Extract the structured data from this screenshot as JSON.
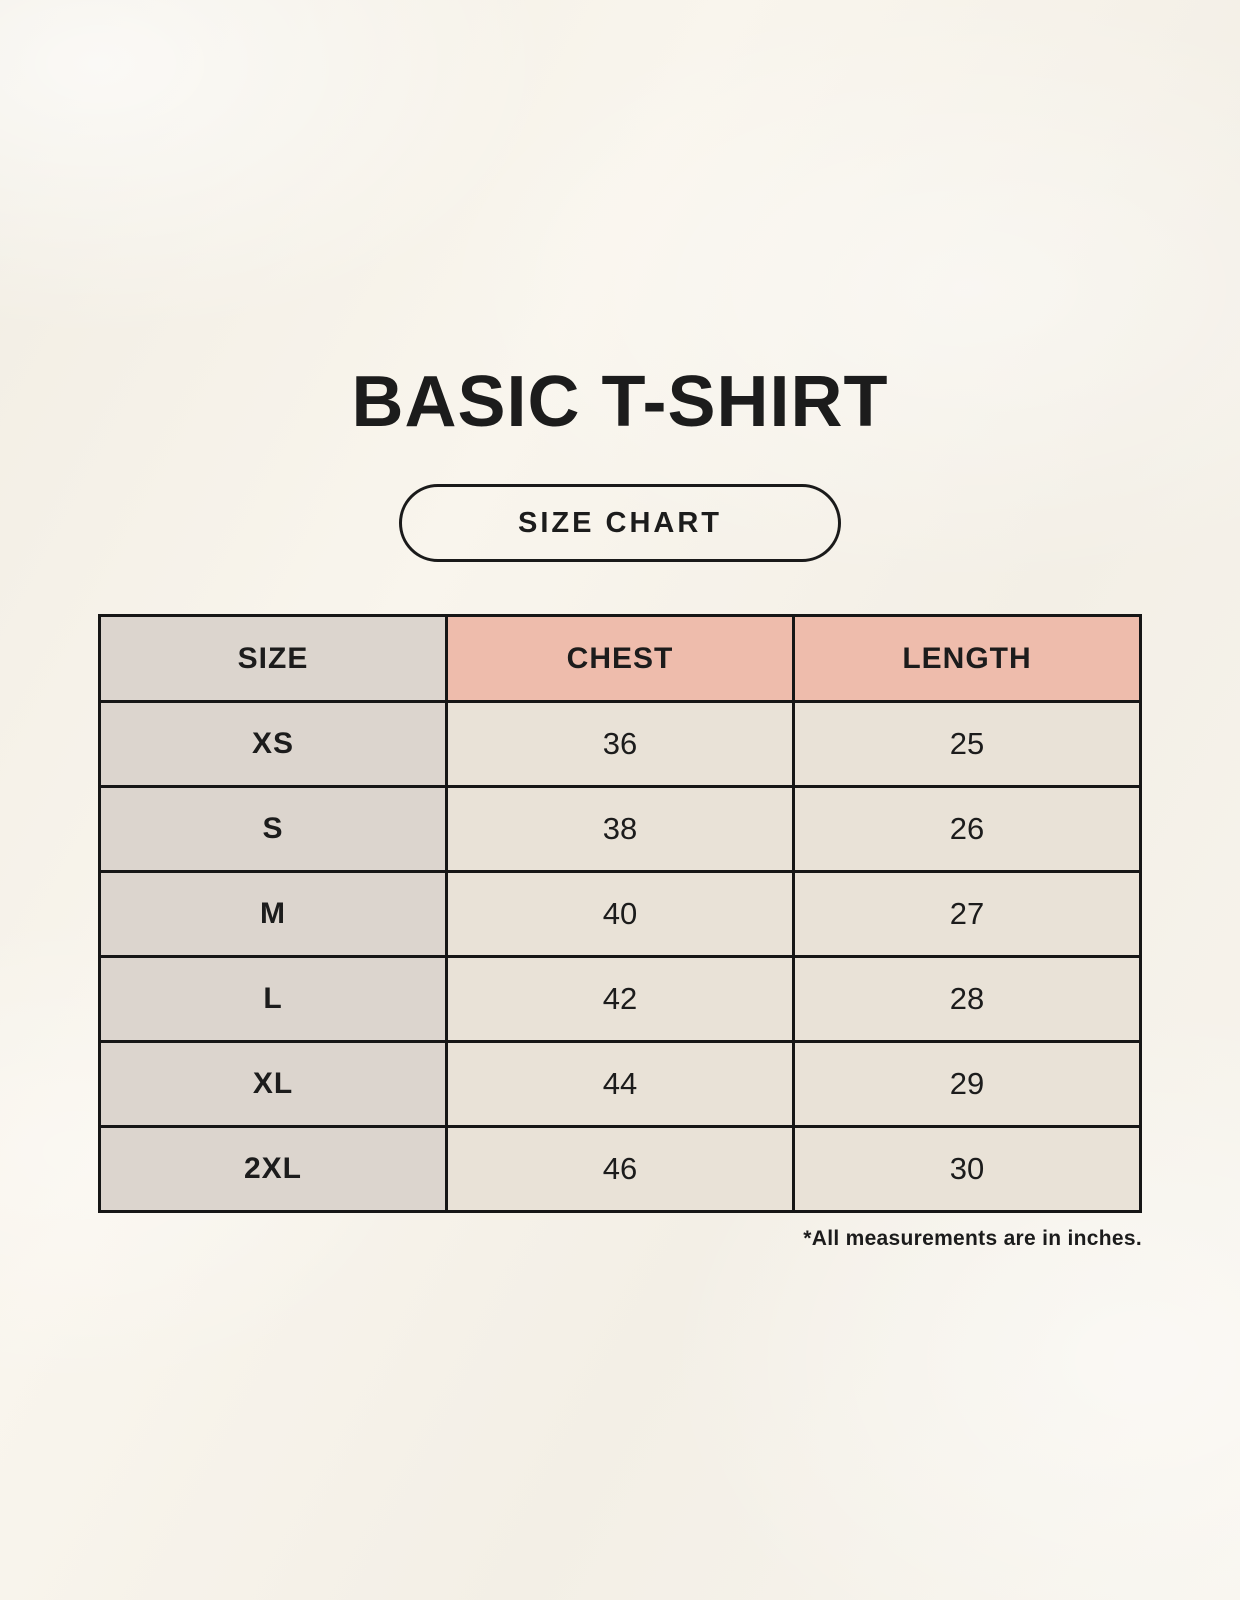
{
  "header": {
    "title": "BASIC T-SHIRT"
  },
  "size_chart_button": {
    "label": "SIZE CHART"
  },
  "footnote": "*All measurements are in inches.",
  "colors": {
    "page_background": "#f6f2e9",
    "accent_header_bg": "#eebcac",
    "size_column_bg": "#dcd5ce",
    "data_cell_bg": "#e9e2d7",
    "table_border": "#161616",
    "text": "#1c1c1c"
  },
  "chart_data": {
    "type": "table",
    "title": "BASIC T-SHIRT",
    "subtitle": "SIZE CHART",
    "columns": [
      "SIZE",
      "CHEST",
      "LENGTH"
    ],
    "rows": [
      {
        "size": "XS",
        "chest": 36,
        "length": 25
      },
      {
        "size": "S",
        "chest": 38,
        "length": 26
      },
      {
        "size": "M",
        "chest": 40,
        "length": 27
      },
      {
        "size": "L",
        "chest": 42,
        "length": 28
      },
      {
        "size": "XL",
        "chest": 44,
        "length": 29
      },
      {
        "size": "2XL",
        "chest": 46,
        "length": 30
      }
    ],
    "units": "inches",
    "footnote": "*All measurements are in inches."
  }
}
